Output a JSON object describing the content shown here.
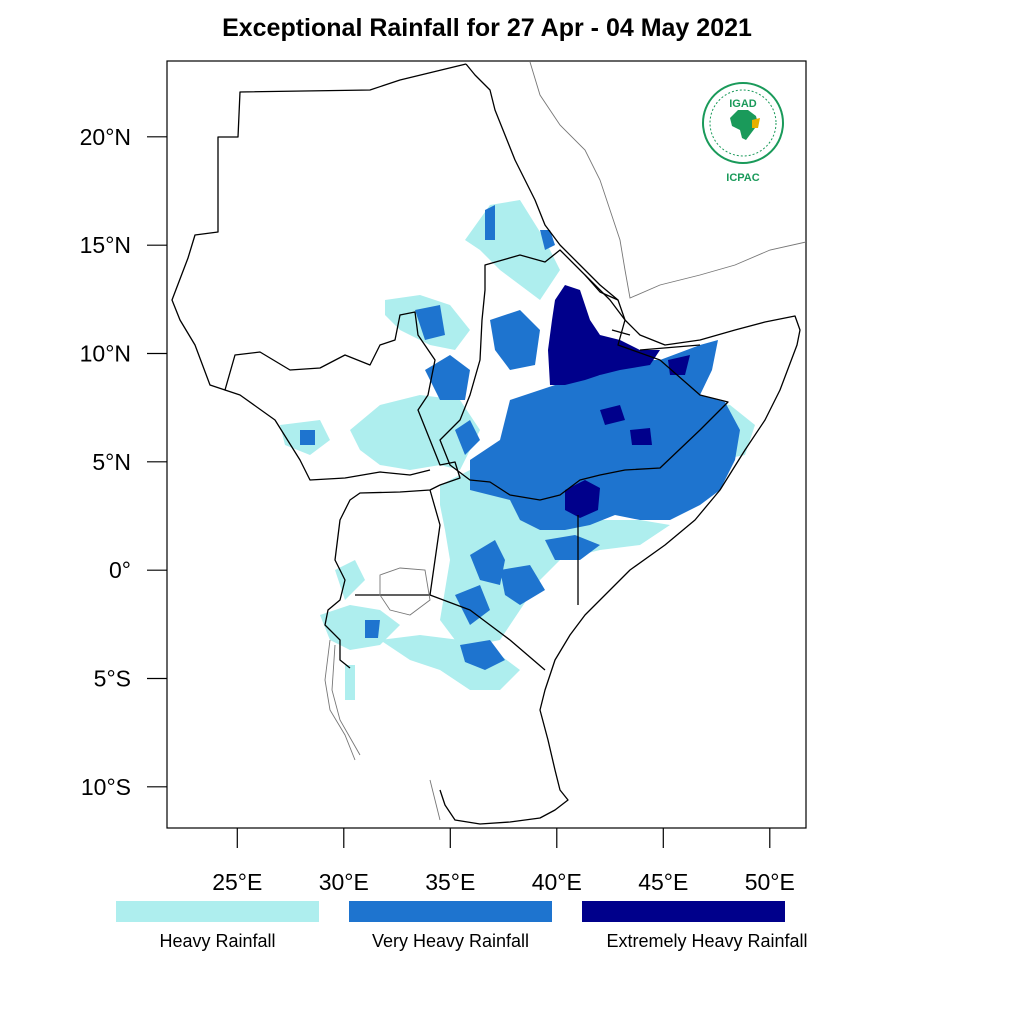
{
  "title": "Exceptional Rainfall for 27 Apr - 04 May 2021",
  "map": {
    "lat_ticks": [
      {
        "value": 20,
        "label": "20°N"
      },
      {
        "value": 15,
        "label": "15°N"
      },
      {
        "value": 10,
        "label": "10°N"
      },
      {
        "value": 5,
        "label": "5°N"
      },
      {
        "value": 0,
        "label": "0°"
      },
      {
        "value": -5,
        "label": "5°S"
      },
      {
        "value": -10,
        "label": "10°S"
      }
    ],
    "lon_ticks": [
      {
        "value": 25,
        "label": "25°E"
      },
      {
        "value": 30,
        "label": "30°E"
      },
      {
        "value": 35,
        "label": "35°E"
      },
      {
        "value": 40,
        "label": "40°E"
      },
      {
        "value": 45,
        "label": "45°E"
      },
      {
        "value": 50,
        "label": "50°E"
      }
    ],
    "lon_range": [
      21.7,
      51.7
    ],
    "lat_range": [
      -11.9,
      23.5
    ]
  },
  "logo": {
    "acronym_top": "IGAD",
    "acronym_bottom": "ICPAC",
    "color": "#1a9a5a"
  },
  "legend": [
    {
      "label": "Heavy Rainfall",
      "color": "#aeeeee"
    },
    {
      "label": "Very Heavy Rainfall",
      "color": "#1e74cf"
    },
    {
      "label": "Extremely Heavy Rainfall",
      "color": "#00008b"
    }
  ]
}
